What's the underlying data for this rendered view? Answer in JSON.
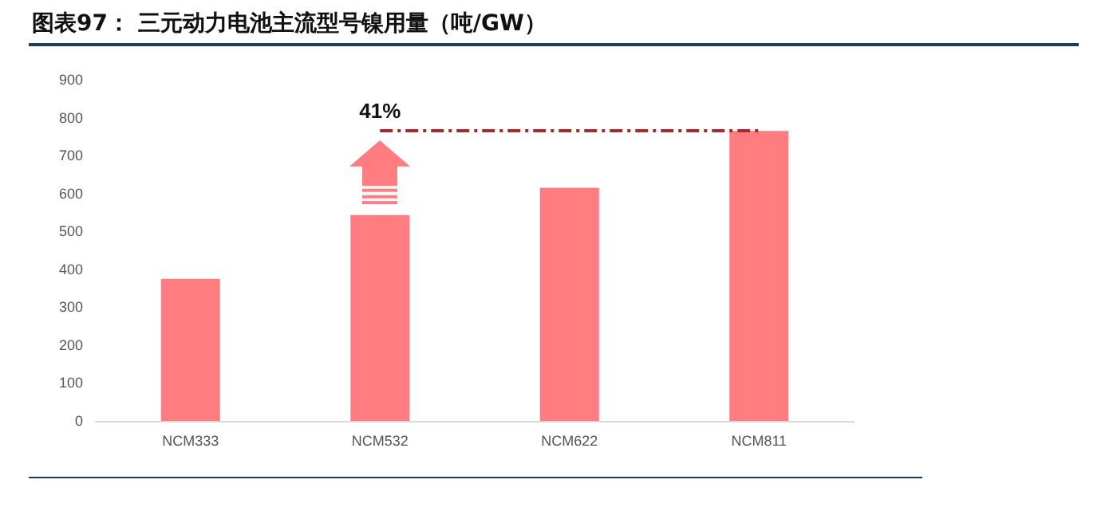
{
  "chart_data": {
    "type": "bar",
    "title": "图表97：  三元动力电池主流型号镍用量（吨/GW）",
    "categories": [
      "NCM333",
      "NCM532",
      "NCM622",
      "NCM811"
    ],
    "values": [
      375,
      543,
      615,
      765
    ],
    "color": "#ff7c80",
    "ylim": [
      0,
      900
    ],
    "yticks": [
      0,
      100,
      200,
      300,
      400,
      500,
      600,
      700,
      800,
      900
    ],
    "grid": false,
    "annotations": [
      {
        "text": "41%",
        "x": "NCM532",
        "y": 765
      }
    ],
    "ref_lines": [
      {
        "axis": "y",
        "value": 765,
        "color": "#a52a2a",
        "line_style": "dashdot"
      }
    ]
  }
}
